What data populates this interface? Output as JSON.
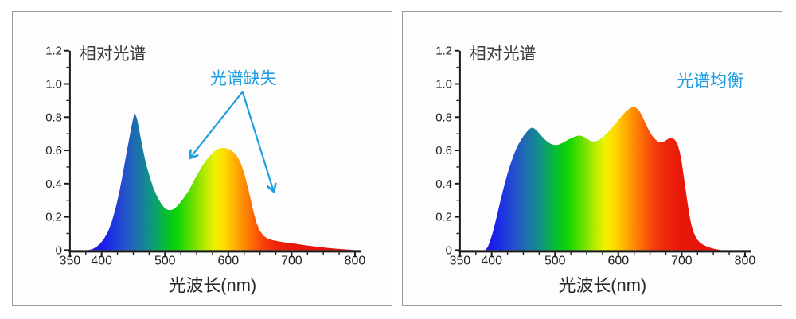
{
  "page": {
    "panel_border_color": "#9b9b9b",
    "axis_color": "#1a1a1a",
    "annotation_blue": "#1e9de2"
  },
  "spectrum_gradient": [
    {
      "nm": 378,
      "color": "#2b1fd6"
    },
    {
      "nm": 395,
      "color": "#1d17e8"
    },
    {
      "nm": 412,
      "color": "#1b2be8"
    },
    {
      "nm": 435,
      "color": "#2450cc"
    },
    {
      "nm": 455,
      "color": "#1c70ac"
    },
    {
      "nm": 475,
      "color": "#12908b"
    },
    {
      "nm": 492,
      "color": "#09ad52"
    },
    {
      "nm": 508,
      "color": "#06c71f"
    },
    {
      "nm": 522,
      "color": "#15d503"
    },
    {
      "nm": 543,
      "color": "#66df00"
    },
    {
      "nm": 562,
      "color": "#b2ea00"
    },
    {
      "nm": 578,
      "color": "#edf200"
    },
    {
      "nm": 593,
      "color": "#ffdd00"
    },
    {
      "nm": 608,
      "color": "#ffb701"
    },
    {
      "nm": 622,
      "color": "#ff9201"
    },
    {
      "nm": 638,
      "color": "#fc6a05"
    },
    {
      "nm": 655,
      "color": "#f64109"
    },
    {
      "nm": 675,
      "color": "#ef260c"
    },
    {
      "nm": 700,
      "color": "#e8170b"
    },
    {
      "nm": 800,
      "color": "#e20f08"
    }
  ],
  "chart_data": [
    {
      "type": "area",
      "title": "相对光谱",
      "xlabel": "光波长(nm)",
      "ylabel": "",
      "xlim": [
        350,
        800
      ],
      "ylim": [
        0,
        1.2
      ],
      "x_ticks": [
        350,
        400,
        500,
        600,
        700,
        800
      ],
      "y_ticks": [
        0,
        0.2,
        0.4,
        0.6,
        0.8,
        1.0,
        1.2
      ],
      "y_tick_labels": [
        "0",
        "0.2",
        "0.4",
        "0.6",
        "0.8",
        "1.0",
        "1.2"
      ],
      "minor_x_step": 25,
      "minor_y_step": 0.1,
      "grid": false,
      "annotation": {
        "text": "光谱缺失",
        "color": "#1e9de2",
        "x": 291,
        "y": 91,
        "arrows": [
          [
            290,
            101,
            224,
            184
          ],
          [
            290,
            101,
            329,
            226
          ]
        ]
      },
      "series": [
        {
          "name": "spectrum-deficient",
          "points": [
            [
              378,
              0
            ],
            [
              385,
              0.005
            ],
            [
              392,
              0.02
            ],
            [
              398,
              0.04
            ],
            [
              404,
              0.07
            ],
            [
              410,
              0.11
            ],
            [
              416,
              0.17
            ],
            [
              422,
              0.25
            ],
            [
              428,
              0.35
            ],
            [
              434,
              0.47
            ],
            [
              440,
              0.6
            ],
            [
              444,
              0.68
            ],
            [
              448,
              0.76
            ],
            [
              452,
              0.83
            ],
            [
              456,
              0.79
            ],
            [
              460,
              0.71
            ],
            [
              465,
              0.61
            ],
            [
              470,
              0.52
            ],
            [
              476,
              0.44
            ],
            [
              482,
              0.37
            ],
            [
              488,
              0.32
            ],
            [
              494,
              0.28
            ],
            [
              500,
              0.25
            ],
            [
              506,
              0.24
            ],
            [
              512,
              0.243
            ],
            [
              518,
              0.26
            ],
            [
              524,
              0.285
            ],
            [
              530,
              0.315
            ],
            [
              538,
              0.36
            ],
            [
              546,
              0.42
            ],
            [
              554,
              0.475
            ],
            [
              562,
              0.525
            ],
            [
              570,
              0.565
            ],
            [
              578,
              0.595
            ],
            [
              584,
              0.61
            ],
            [
              590,
              0.615
            ],
            [
              596,
              0.613
            ],
            [
              602,
              0.606
            ],
            [
              608,
              0.59
            ],
            [
              614,
              0.565
            ],
            [
              620,
              0.52
            ],
            [
              626,
              0.45
            ],
            [
              632,
              0.36
            ],
            [
              638,
              0.26
            ],
            [
              644,
              0.17
            ],
            [
              650,
              0.115
            ],
            [
              656,
              0.085
            ],
            [
              662,
              0.07
            ],
            [
              670,
              0.06
            ],
            [
              680,
              0.052
            ],
            [
              692,
              0.045
            ],
            [
              706,
              0.038
            ],
            [
              720,
              0.03
            ],
            [
              736,
              0.022
            ],
            [
              752,
              0.015
            ],
            [
              768,
              0.009
            ],
            [
              782,
              0.005
            ],
            [
              794,
              0.002
            ],
            [
              800,
              0
            ]
          ]
        }
      ]
    },
    {
      "type": "area",
      "title": "相对光谱",
      "xlabel": "光波长(nm)",
      "ylabel": "",
      "xlim": [
        350,
        800
      ],
      "ylim": [
        0,
        1.2
      ],
      "x_ticks": [
        350,
        400,
        500,
        600,
        700,
        800
      ],
      "y_ticks": [
        0,
        0.2,
        0.4,
        0.6,
        0.8,
        1.0,
        1.2
      ],
      "y_tick_labels": [
        "0",
        "0.2",
        "0.4",
        "0.6",
        "0.8",
        "1.0",
        "1.2"
      ],
      "minor_x_step": 25,
      "minor_y_step": 0.1,
      "grid": false,
      "annotation": {
        "text": "光谱均衡",
        "color": "#1e9de2",
        "x": 388,
        "y": 94,
        "arrows": []
      },
      "series": [
        {
          "name": "spectrum-balanced",
          "points": [
            [
              390,
              0
            ],
            [
              394,
              0.02
            ],
            [
              398,
              0.06
            ],
            [
              402,
              0.11
            ],
            [
              406,
              0.17
            ],
            [
              410,
              0.235
            ],
            [
              415,
              0.315
            ],
            [
              420,
              0.39
            ],
            [
              425,
              0.46
            ],
            [
              430,
              0.52
            ],
            [
              435,
              0.575
            ],
            [
              440,
              0.62
            ],
            [
              445,
              0.655
            ],
            [
              450,
              0.685
            ],
            [
              455,
              0.71
            ],
            [
              460,
              0.73
            ],
            [
              464,
              0.737
            ],
            [
              468,
              0.73
            ],
            [
              472,
              0.715
            ],
            [
              477,
              0.695
            ],
            [
              482,
              0.673
            ],
            [
              488,
              0.652
            ],
            [
              494,
              0.638
            ],
            [
              500,
              0.632
            ],
            [
              506,
              0.635
            ],
            [
              512,
              0.645
            ],
            [
              518,
              0.658
            ],
            [
              524,
              0.671
            ],
            [
              530,
              0.681
            ],
            [
              536,
              0.688
            ],
            [
              540,
              0.689
            ],
            [
              545,
              0.683
            ],
            [
              550,
              0.671
            ],
            [
              555,
              0.659
            ],
            [
              560,
              0.653
            ],
            [
              565,
              0.655
            ],
            [
              570,
              0.664
            ],
            [
              576,
              0.681
            ],
            [
              582,
              0.703
            ],
            [
              588,
              0.728
            ],
            [
              594,
              0.755
            ],
            [
              600,
              0.783
            ],
            [
              606,
              0.81
            ],
            [
              612,
              0.834
            ],
            [
              618,
              0.853
            ],
            [
              623,
              0.862
            ],
            [
              628,
              0.856
            ],
            [
              633,
              0.838
            ],
            [
              638,
              0.805
            ],
            [
              643,
              0.762
            ],
            [
              648,
              0.722
            ],
            [
              653,
              0.69
            ],
            [
              658,
              0.667
            ],
            [
              663,
              0.652
            ],
            [
              668,
              0.648
            ],
            [
              673,
              0.655
            ],
            [
              678,
              0.668
            ],
            [
              682,
              0.677
            ],
            [
              686,
              0.674
            ],
            [
              690,
              0.66
            ],
            [
              694,
              0.632
            ],
            [
              697,
              0.59
            ],
            [
              700,
              0.53
            ],
            [
              703,
              0.45
            ],
            [
              706,
              0.37
            ],
            [
              709,
              0.29
            ],
            [
              712,
              0.215
            ],
            [
              715,
              0.155
            ],
            [
              719,
              0.105
            ],
            [
              723,
              0.072
            ],
            [
              728,
              0.048
            ],
            [
              734,
              0.032
            ],
            [
              741,
              0.02
            ],
            [
              748,
              0.011
            ],
            [
              755,
              0.005
            ],
            [
              762,
              0
            ]
          ]
        }
      ]
    }
  ]
}
